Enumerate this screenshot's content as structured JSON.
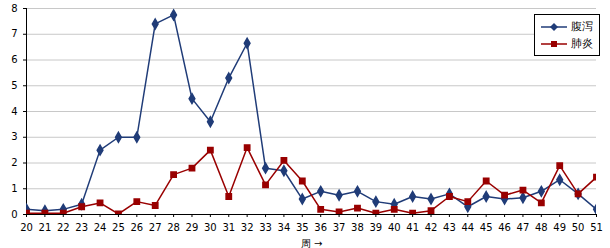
{
  "chart_data": {
    "type": "line",
    "x_label": "周",
    "x": [
      20,
      21,
      22,
      23,
      24,
      25,
      26,
      27,
      28,
      29,
      30,
      31,
      32,
      33,
      34,
      35,
      36,
      37,
      38,
      39,
      40,
      41,
      42,
      43,
      44,
      45,
      46,
      47,
      48,
      49,
      50,
      51
    ],
    "xlim": [
      20,
      51
    ],
    "xticks": [
      20,
      21,
      22,
      23,
      24,
      25,
      26,
      27,
      28,
      29,
      30,
      31,
      32,
      33,
      34,
      35,
      36,
      37,
      38,
      39,
      40,
      41,
      42,
      43,
      44,
      45,
      46,
      47,
      48,
      49,
      50,
      51
    ],
    "ylim": [
      0,
      8
    ],
    "yticks": [
      0,
      1,
      2,
      3,
      4,
      5,
      6,
      7,
      8
    ],
    "grid": true,
    "legend": "top-right",
    "series": [
      {
        "name": "腹泻",
        "color": "#203c78",
        "marker": "diamond",
        "values": [
          0.2,
          0.15,
          0.2,
          0.4,
          2.5,
          3.0,
          3.0,
          7.4,
          7.75,
          4.5,
          3.6,
          5.3,
          6.65,
          1.8,
          1.7,
          0.6,
          0.9,
          0.75,
          0.9,
          0.5,
          0.4,
          0.7,
          0.6,
          0.8,
          0.3,
          0.7,
          0.6,
          0.65,
          0.9,
          1.35,
          0.8,
          0.2
        ]
      },
      {
        "name": "肺炎",
        "color": "#990000",
        "marker": "square",
        "values": [
          0.05,
          0.05,
          0.05,
          0.3,
          0.45,
          0.02,
          0.5,
          0.35,
          1.55,
          1.8,
          2.5,
          0.7,
          2.6,
          1.15,
          2.1,
          1.3,
          0.2,
          0.1,
          0.25,
          0.05,
          0.2,
          0.05,
          0.15,
          0.7,
          0.5,
          1.3,
          0.75,
          0.95,
          0.45,
          1.9,
          0.8,
          1.45
        ]
      }
    ]
  }
}
